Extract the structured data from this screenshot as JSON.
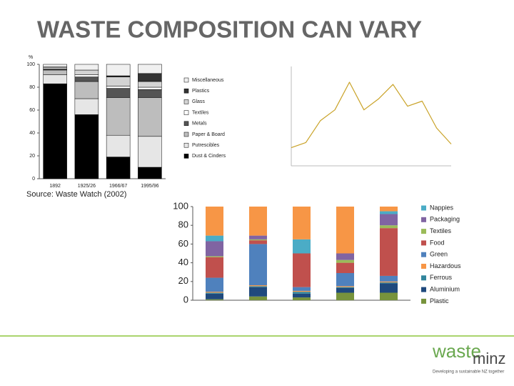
{
  "title": "WASTE COMPOSITION CAN VARY",
  "chart_data": [
    {
      "type": "bar",
      "stacked": true,
      "y_label": "%",
      "source": "Source: Waste Watch (2002)",
      "categories": [
        "1892",
        "1925/26",
        "1966/67",
        "1995/96"
      ],
      "ylim": [
        0,
        100
      ],
      "yticks": [
        0,
        20,
        40,
        60,
        80,
        100
      ],
      "series": [
        {
          "name": "Dust & Cinders",
          "color": "#000000",
          "values": [
            83,
            56,
            19,
            10
          ]
        },
        {
          "name": "Putrescibles",
          "color": "#e6e6e6",
          "values": [
            8,
            14,
            19,
            27
          ]
        },
        {
          "name": "Paper & Board",
          "color": "#bdbdbd",
          "values": [
            4,
            15,
            33,
            34
          ]
        },
        {
          "name": "Metals",
          "color": "#555555",
          "values": [
            1,
            4,
            8,
            7
          ]
        },
        {
          "name": "Textiles",
          "color": "#ffffff",
          "values": [
            1,
            2,
            2,
            2
          ]
        },
        {
          "name": "Glass",
          "color": "#d4d4d4",
          "values": [
            1,
            4,
            8,
            5
          ]
        },
        {
          "name": "Plastics",
          "color": "#333333",
          "values": [
            0,
            0,
            1,
            7
          ]
        },
        {
          "name": "Miscellaneous",
          "color": "#f0f0f0",
          "values": [
            2,
            5,
            10,
            8
          ]
        }
      ]
    },
    {
      "type": "line",
      "color": "#c9a227",
      "values": [
        25,
        32,
        62,
        77,
        115,
        77,
        92,
        112,
        82,
        89,
        52,
        30
      ]
    },
    {
      "type": "bar",
      "stacked": true,
      "categories": [
        null,
        null,
        null,
        null,
        null
      ],
      "ylim": [
        0,
        100
      ],
      "yticks": [
        0,
        20,
        40,
        60,
        80,
        100
      ],
      "series": [
        {
          "name": "Plastic",
          "color": "#77933c",
          "values": [
            1,
            4,
            3,
            8,
            8
          ]
        },
        {
          "name": "Aluminium",
          "color": "#1f497d",
          "values": [
            6,
            10,
            4,
            5,
            10
          ]
        },
        {
          "name": "Ferrous",
          "color": "#31859c",
          "values": [
            1,
            1,
            2,
            1,
            1
          ]
        },
        {
          "name": "Hazardous",
          "color": "#f79646",
          "values": [
            1,
            1,
            1,
            1,
            1
          ]
        },
        {
          "name": "Green",
          "color": "#4f81bd",
          "values": [
            15,
            44,
            4,
            14,
            6
          ]
        },
        {
          "name": "Food",
          "color": "#c0504d",
          "values": [
            22,
            4,
            36,
            11,
            51
          ]
        },
        {
          "name": "Textiles",
          "color": "#9bbb59",
          "values": [
            1,
            1,
            0,
            3,
            3
          ]
        },
        {
          "name": "Packaging",
          "color": "#8064a2",
          "values": [
            16,
            4,
            0,
            7,
            12
          ]
        },
        {
          "name": "Nappies",
          "color": "#4bacc6",
          "values": [
            6,
            0,
            15,
            0,
            3
          ]
        },
        {
          "name": null,
          "color": "#f79646",
          "values": [
            31,
            31,
            35,
            50,
            5
          ]
        }
      ]
    }
  ],
  "footer": {
    "logo_main": "waste",
    "logo_sub": "minz",
    "tagline": "Developing a sustainable NZ together"
  }
}
